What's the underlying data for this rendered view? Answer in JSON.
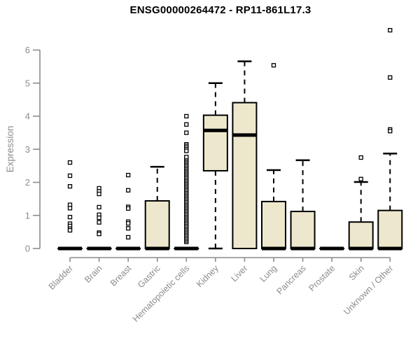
{
  "header": {
    "title": "ENSG00000264472 - RP11-861L17.3"
  },
  "chart_data": {
    "type": "boxplot",
    "title": "ENSG00000264472 - RP11-861L17.3",
    "xlabel": "",
    "ylabel": "Expression",
    "ylim": [
      0,
      6
    ],
    "yticks": [
      0,
      1,
      2,
      3,
      4,
      5,
      6
    ],
    "grid": false,
    "legend": "none",
    "colors": {
      "box_fill": "#EDE8CD",
      "box_border": "#000000",
      "median": "#000000",
      "whisker": "#000000",
      "axis": "#8C8C8C",
      "tick_text": "#8C8C8C",
      "title_text": "#000000",
      "background": "#FFFFFF"
    },
    "categories": [
      "Bladder",
      "Brain",
      "Breast",
      "Gastric",
      "Hematopoietic cells",
      "Kidney",
      "Liver",
      "Lung",
      "Pancreas",
      "Prostate",
      "Skin",
      "Unknown / Other"
    ],
    "series": [
      {
        "name": "Bladder",
        "q1": 0,
        "median": 0,
        "q3": 0,
        "whisker_low": 0,
        "whisker_high": 0,
        "outliers": [
          2.6,
          2.2,
          1.88,
          1.32,
          1.22,
          0.95,
          0.75,
          0.68,
          0.6,
          0.55
        ]
      },
      {
        "name": "Brain",
        "q1": 0,
        "median": 0,
        "q3": 0,
        "whisker_low": 0,
        "whisker_high": 0,
        "outliers": [
          1.82,
          1.73,
          1.65,
          1.25,
          1.02,
          0.93,
          0.79,
          0.48,
          0.44
        ]
      },
      {
        "name": "Breast",
        "q1": 0,
        "median": 0,
        "q3": 0,
        "whisker_low": 0,
        "whisker_high": 0,
        "outliers": [
          2.22,
          1.76,
          1.26,
          1.21,
          0.81,
          0.76,
          0.61,
          0.34
        ]
      },
      {
        "name": "Gastric",
        "q1": 0,
        "median": 0,
        "q3": 1.44,
        "whisker_low": 0,
        "whisker_high": 2.47,
        "outliers": []
      },
      {
        "name": "Hematopoietic cells",
        "q1": 0,
        "median": 0,
        "q3": 0,
        "whisker_low": 0,
        "whisker_high": 0,
        "outliers": [
          4.0,
          3.75,
          3.5,
          3.15,
          3.1,
          3.05,
          3.0,
          2.95
        ],
        "outlier_stack": {
          "from": 0.2,
          "to": 2.8,
          "step": 0.045
        }
      },
      {
        "name": "Kidney",
        "q1": 2.35,
        "median": 3.57,
        "q3": 4.03,
        "whisker_low": 0,
        "whisker_high": 5.0,
        "outliers": []
      },
      {
        "name": "Liver",
        "q1": 0,
        "median": 3.43,
        "q3": 4.41,
        "whisker_low": 0,
        "whisker_high": 5.66,
        "outliers": []
      },
      {
        "name": "Lung",
        "q1": 0,
        "median": 0,
        "q3": 1.42,
        "whisker_low": 0,
        "whisker_high": 2.37,
        "outliers": [
          5.54
        ]
      },
      {
        "name": "Pancreas",
        "q1": 0,
        "median": 0,
        "q3": 1.12,
        "whisker_low": 0,
        "whisker_high": 2.67,
        "outliers": []
      },
      {
        "name": "Prostate",
        "q1": 0,
        "median": 0,
        "q3": 0,
        "whisker_low": 0,
        "whisker_high": 0,
        "outliers": []
      },
      {
        "name": "Skin",
        "q1": 0,
        "median": 0,
        "q3": 0.8,
        "whisker_low": 0,
        "whisker_high": 2.01,
        "outliers": [
          2.75,
          2.1
        ]
      },
      {
        "name": "Unknown / Other",
        "q1": 0,
        "median": 0,
        "q3": 1.15,
        "whisker_low": 0,
        "whisker_high": 2.87,
        "outliers": [
          6.6,
          5.17,
          3.6,
          3.55
        ]
      }
    ]
  }
}
